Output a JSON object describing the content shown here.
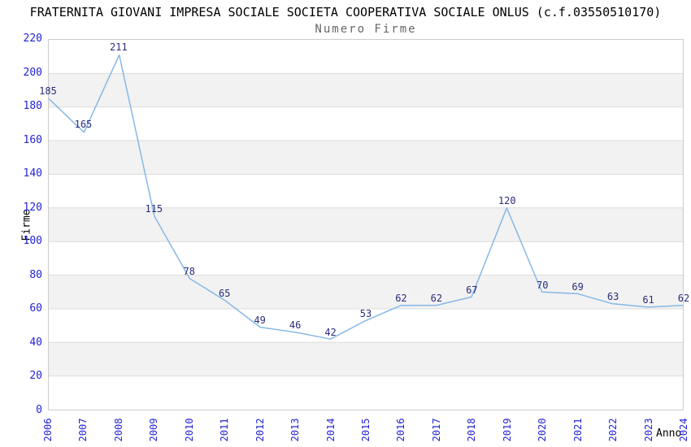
{
  "chart_data": {
    "type": "line",
    "title": "FRATERNITA GIOVANI IMPRESA SOCIALE SOCIETA COOPERATIVA SOCIALE ONLUS (c.f.03550510170)",
    "subtitle": "Numero Firme",
    "xlabel": "Anno",
    "ylabel": "Firme",
    "categories": [
      "2006",
      "2007",
      "2008",
      "2009",
      "2010",
      "2011",
      "2012",
      "2013",
      "2014",
      "2015",
      "2016",
      "2017",
      "2018",
      "2019",
      "2020",
      "2021",
      "2022",
      "2023",
      "2024"
    ],
    "values": [
      185,
      165,
      211,
      115,
      78,
      65,
      49,
      46,
      42,
      53,
      62,
      62,
      67,
      120,
      70,
      69,
      63,
      61,
      62
    ],
    "ylim": [
      0,
      220
    ],
    "ytick_step": 20,
    "grid": true,
    "legend_position": "none",
    "data_labels_visible": true,
    "colors": {
      "line": "#85b8e8",
      "band": "#f2f2f2",
      "gridline": "#dcdcdc",
      "plot_border": "#cccccc",
      "tick_label": "#2323d6",
      "data_label": "#2b2b7d",
      "title": "#000000",
      "subtitle": "#666666",
      "axis_title": "#000000"
    }
  }
}
